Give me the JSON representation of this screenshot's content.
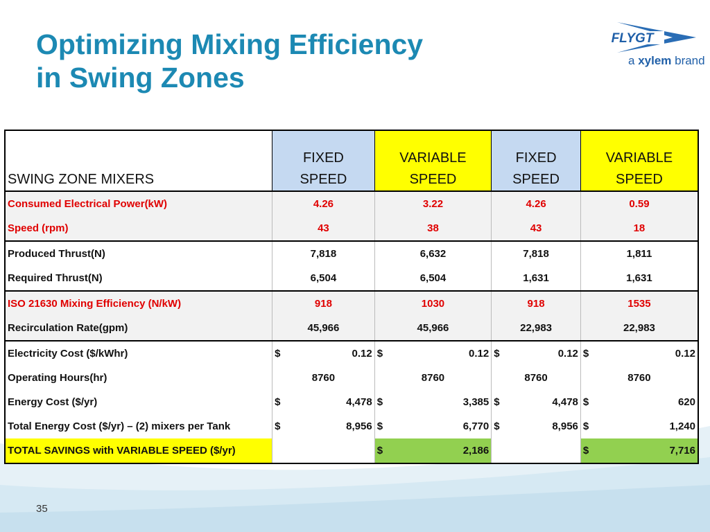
{
  "header": {
    "title_line1": "Optimizing Mixing Efficiency",
    "title_line2": "in Swing Zones",
    "logo_text": "FLYGT",
    "logo_sub_prefix": "a ",
    "logo_sub_brand": "xylem",
    "logo_sub_suffix": " brand"
  },
  "table": {
    "headers": [
      {
        "line1": "SWING ZONE MIXERS",
        "line2": ""
      },
      {
        "line1": "FIXED",
        "line2": "SPEED"
      },
      {
        "line1": "VARIABLE",
        "line2": "SPEED"
      },
      {
        "line1": "FIXED",
        "line2": "SPEED"
      },
      {
        "line1": "VARIABLE",
        "line2": "SPEED"
      }
    ],
    "rows": [
      {
        "label": "Consumed Electrical Power(kW)",
        "values": [
          "4.26",
          "3.22",
          "4.26",
          "0.59"
        ]
      },
      {
        "label": "Speed (rpm)",
        "values": [
          "43",
          "38",
          "43",
          "18"
        ]
      },
      {
        "label": "Produced Thrust(N)",
        "values": [
          "7,818",
          "6,632",
          "7,818",
          "1,811"
        ]
      },
      {
        "label": "Required Thrust(N)",
        "values": [
          "6,504",
          "6,504",
          "1,631",
          "1,631"
        ]
      },
      {
        "label": "ISO 21630 Mixing Efficiency (N/kW)",
        "values": [
          "918",
          "1030",
          "918",
          "1535"
        ]
      },
      {
        "label": "Recirculation Rate(gpm)",
        "values": [
          "45,966",
          "45,966",
          "22,983",
          "22,983"
        ]
      },
      {
        "label": "Electricity Cost ($/kWhr)",
        "currency": "$",
        "values": [
          "0.12",
          "0.12",
          "0.12",
          "0.12"
        ]
      },
      {
        "label": "Operating Hours(hr)",
        "values": [
          "8760",
          "8760",
          "8760",
          "8760"
        ]
      },
      {
        "label": "Energy Cost ($/yr)",
        "currency": "$",
        "values": [
          "4,478",
          "3,385",
          "4,478",
          "620"
        ]
      },
      {
        "label": "Total Energy Cost ($/yr) – (2) mixers per Tank",
        "currency": "$",
        "values": [
          "8,956",
          "6,770",
          "8,956",
          "1,240"
        ]
      }
    ],
    "total": {
      "label": "TOTAL SAVINGS with VARIABLE SPEED ($/yr)",
      "currency": "$",
      "values": [
        "",
        "2,186",
        "",
        "7,716"
      ]
    }
  },
  "footer": {
    "slide_number": "35"
  },
  "colors": {
    "title": "#1c89b3",
    "fixed_header": "#c5d9f1",
    "variable_header": "#ffff00",
    "savings_highlight": "#92d050",
    "red_text": "#e00000"
  }
}
